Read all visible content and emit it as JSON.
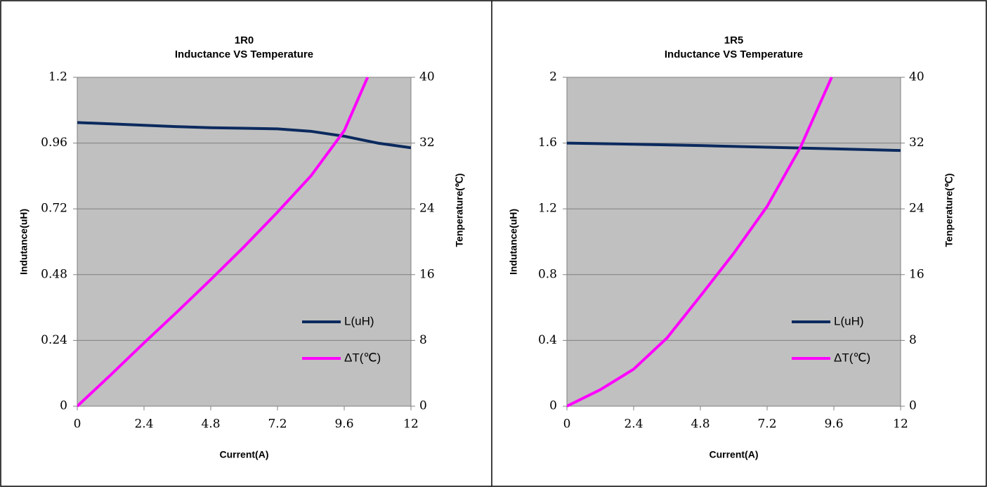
{
  "chart_data": [
    {
      "type": "line",
      "title": "1R0",
      "subtitle": "Inductance VS Temperature",
      "xlabel": "Current(A)",
      "ylabel": "Indutance(uH)",
      "y2label": "Tenperature(℃)",
      "xlim": [
        0,
        12
      ],
      "xticks": [
        0,
        2.4,
        4.8,
        7.2,
        9.6,
        12
      ],
      "ylim": [
        0,
        1.2
      ],
      "yticks": [
        0,
        0.24,
        0.48,
        0.72,
        0.96,
        1.2
      ],
      "y2lim": [
        0,
        40
      ],
      "y2ticks": [
        0,
        8,
        16,
        24,
        32,
        40
      ],
      "grid": true,
      "legend": "lower right",
      "series": [
        {
          "name": "L(uH)",
          "color": "#0b2a5e",
          "x": [
            0,
            1.2,
            2.4,
            3.6,
            4.8,
            6,
            7.2,
            8.4,
            9.6,
            10.8,
            12
          ],
          "values": [
            1.035,
            1.03,
            1.025,
            1.02,
            1.016,
            1.014,
            1.012,
            1.003,
            0.985,
            0.96,
            0.943
          ]
        },
        {
          "name": "ΔT(℃)",
          "color": "#ff00ff",
          "axis": "y2",
          "x": [
            0,
            1.2,
            2.4,
            3.6,
            4.8,
            6,
            7.2,
            8.4,
            9.6,
            10.44
          ],
          "values": [
            0,
            3.8,
            7.7,
            11.5,
            15.4,
            19.4,
            23.6,
            28,
            33.5,
            40
          ]
        }
      ]
    },
    {
      "type": "line",
      "title": "1R5",
      "subtitle": "Inductance VS Temperature",
      "xlabel": "Current(A)",
      "ylabel": "Indutance(uH)",
      "y2label": "Tenperature(℃)",
      "xlim": [
        0,
        12
      ],
      "xticks": [
        0,
        2.4,
        4.8,
        7.2,
        9.6,
        12
      ],
      "ylim": [
        0,
        2
      ],
      "yticks": [
        0,
        0.4,
        0.8,
        1.2,
        1.6,
        2
      ],
      "y2lim": [
        0,
        40
      ],
      "y2ticks": [
        0,
        8,
        16,
        24,
        32,
        40
      ],
      "grid": true,
      "legend": "lower right",
      "series": [
        {
          "name": "L(uH)",
          "color": "#0b2a5e",
          "x": [
            0,
            2.4,
            4.8,
            7.2,
            9.6,
            12
          ],
          "values": [
            1.6,
            1.593,
            1.585,
            1.575,
            1.565,
            1.555
          ]
        },
        {
          "name": "ΔT(℃)",
          "color": "#ff00ff",
          "axis": "y2",
          "x": [
            0,
            1.2,
            2.4,
            3.6,
            4.8,
            6,
            7.2,
            8.4,
            9.52
          ],
          "values": [
            0,
            2,
            4.5,
            8.3,
            13.4,
            18.6,
            24.3,
            31.5,
            40
          ]
        }
      ]
    }
  ]
}
